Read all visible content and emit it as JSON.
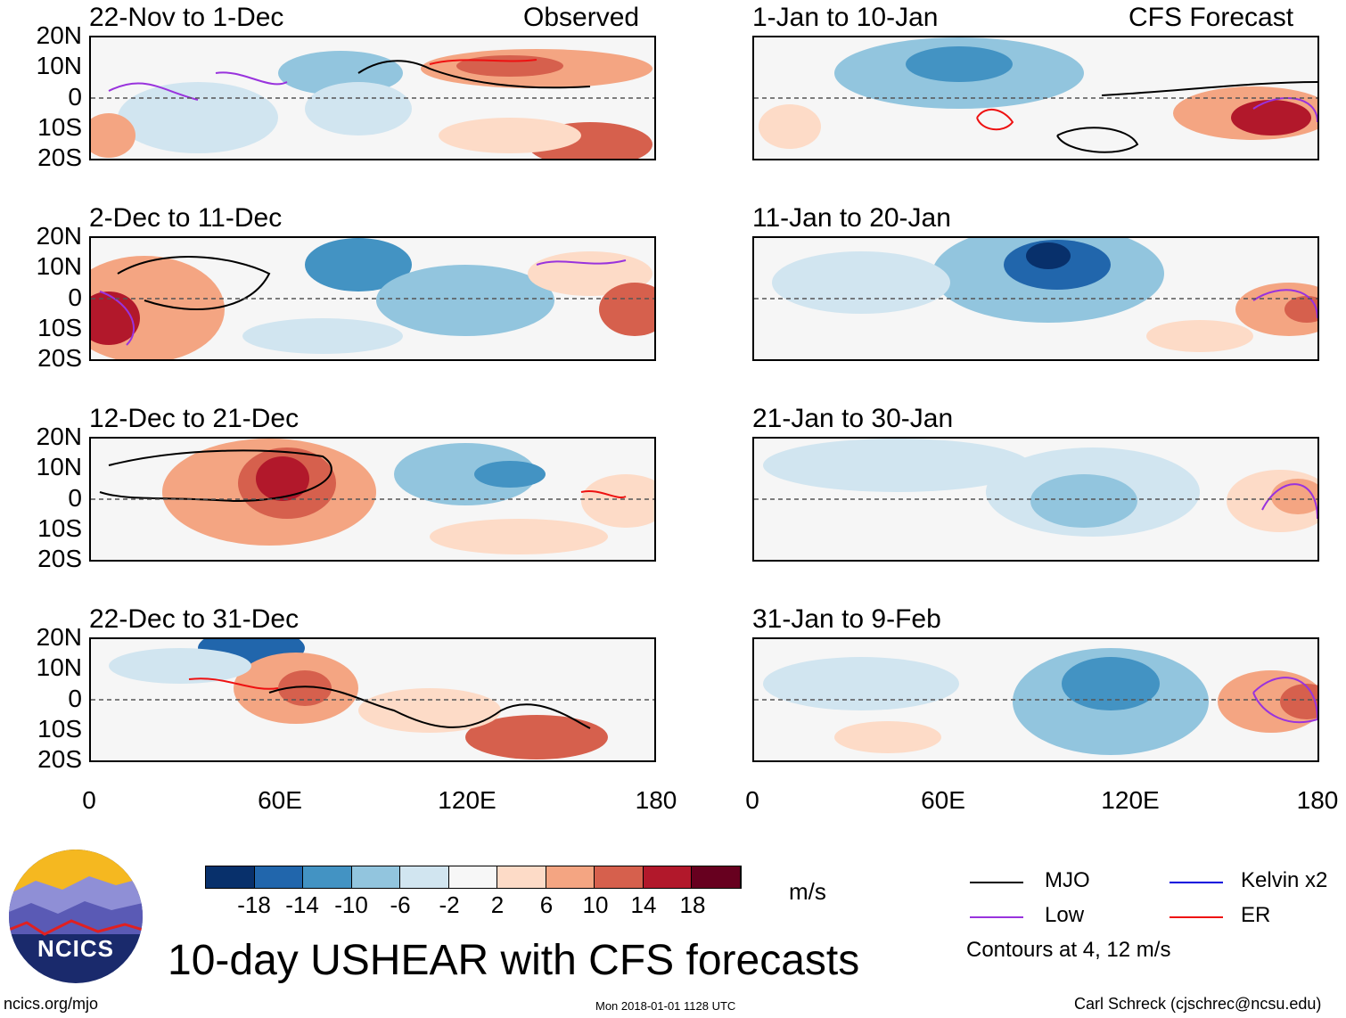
{
  "panels": [
    {
      "title": "22-Nov to 1-Dec",
      "tag": "Observed"
    },
    {
      "title": "1-Jan to 10-Jan",
      "tag": "CFS Forecast"
    },
    {
      "title": "2-Dec to 11-Dec",
      "tag": ""
    },
    {
      "title": "11-Jan to 20-Jan",
      "tag": ""
    },
    {
      "title": "12-Dec to 21-Dec",
      "tag": ""
    },
    {
      "title": "21-Jan to 30-Jan",
      "tag": ""
    },
    {
      "title": "22-Dec to 31-Dec",
      "tag": ""
    },
    {
      "title": "31-Jan to 9-Feb",
      "tag": ""
    }
  ],
  "axes": {
    "lat_labels": [
      "20N",
      "10N",
      "0",
      "10S",
      "20S"
    ],
    "lon_labels": [
      "0",
      "60E",
      "120E",
      "180"
    ]
  },
  "colorbar": {
    "labels": [
      "-18",
      "-14",
      "-10",
      "-6",
      "-2",
      "2",
      "6",
      "10",
      "14",
      "18"
    ],
    "colors": [
      "#08306b",
      "#2166ac",
      "#4393c3",
      "#92c5de",
      "#d1e5f0",
      "#f7f7f7",
      "#fddbc7",
      "#f4a582",
      "#d6604d",
      "#b2182b",
      "#67001f"
    ],
    "unit": "m/s"
  },
  "legend": {
    "items": [
      {
        "label": "MJO",
        "color": "#000000"
      },
      {
        "label": "Kelvin x2",
        "color": "#0000dd"
      },
      {
        "label": "Low",
        "color": "#9933dd"
      },
      {
        "label": "ER",
        "color": "#ee1111"
      }
    ],
    "note": "Contours at 4, 12 m/s"
  },
  "title": "10-day USHEAR with CFS forecasts",
  "logo_text": "NCICS",
  "footer": {
    "left": "ncics.org/mjo",
    "center": "Mon 2018-01-01 1128 UTC",
    "right": "Carl Schreck (cjschrec@ncsu.edu)"
  }
}
